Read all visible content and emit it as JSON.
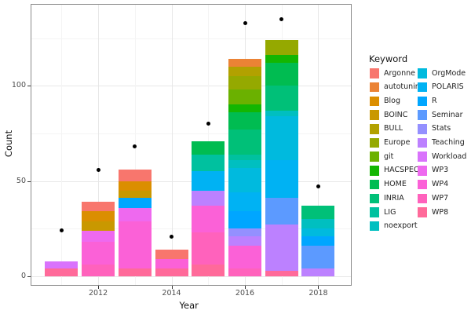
{
  "colors": {
    "background": "#ffffff",
    "panel_border": "#8a8a8a",
    "grid_major": "#e7e7e7",
    "grid_minor": "#f4f4f4",
    "tick_label": "#4d4d4d",
    "point": "#000000"
  },
  "chart_data": {
    "type": "bar",
    "stacked": true,
    "orientation": "vertical",
    "title": "",
    "xlabel": "Year",
    "ylabel": "Count",
    "legend_title": "Keyword",
    "legend_position": "right",
    "grid": true,
    "x_ticks": [
      2012,
      2014,
      2016,
      2018
    ],
    "x_minor": [
      2011,
      2013,
      2015,
      2017
    ],
    "y_ticks": [
      0,
      50,
      100
    ],
    "y_minor": [
      25,
      75,
      125
    ],
    "ylim": [
      0,
      142
    ],
    "years": [
      2011,
      2012,
      2013,
      2014,
      2015,
      2016,
      2017,
      2018
    ],
    "keywords": [
      {
        "name": "Argonne",
        "color": "#F8766D"
      },
      {
        "name": "autotuning",
        "color": "#EB8335"
      },
      {
        "name": "Blog",
        "color": "#DB8E00"
      },
      {
        "name": "BOINC",
        "color": "#C99800"
      },
      {
        "name": "BULL",
        "color": "#B2A100"
      },
      {
        "name": "Europe",
        "color": "#95A900"
      },
      {
        "name": "git",
        "color": "#6BB100"
      },
      {
        "name": "HACSPECIS",
        "color": "#13B602"
      },
      {
        "name": "HOME",
        "color": "#00BC51"
      },
      {
        "name": "INRIA",
        "color": "#00C078"
      },
      {
        "name": "LIG",
        "color": "#00C19F"
      },
      {
        "name": "noexport",
        "color": "#00BFC0"
      },
      {
        "name": "OrgMode",
        "color": "#00BADE"
      },
      {
        "name": "POLARIS",
        "color": "#00B2F3"
      },
      {
        "name": "R",
        "color": "#00A6FF"
      },
      {
        "name": "Seminar",
        "color": "#5C9AFF"
      },
      {
        "name": "Stats",
        "color": "#9490FF"
      },
      {
        "name": "Teaching",
        "color": "#BC81FF"
      },
      {
        "name": "Workload",
        "color": "#D973FC"
      },
      {
        "name": "WP3",
        "color": "#EE69EF"
      },
      {
        "name": "WP4",
        "color": "#FB61D7"
      },
      {
        "name": "WP7",
        "color": "#FF62BC"
      },
      {
        "name": "WP8",
        "color": "#FF6A9A"
      }
    ],
    "segment_order": "top_to_bottom",
    "bars": [
      {
        "year": 2011,
        "total": 8,
        "segments": [
          {
            "keyword": "Workload",
            "value": 4
          },
          {
            "keyword": "WP8",
            "value": 4
          }
        ]
      },
      {
        "year": 2012,
        "total": 39,
        "segments": [
          {
            "keyword": "Argonne",
            "value": 5
          },
          {
            "keyword": "Blog",
            "value": 5
          },
          {
            "keyword": "BOINC",
            "value": 5
          },
          {
            "keyword": "WP3",
            "value": 6
          },
          {
            "keyword": "WP4",
            "value": 12
          },
          {
            "keyword": "WP7",
            "value": 6
          }
        ]
      },
      {
        "year": 2013,
        "total": 56,
        "segments": [
          {
            "keyword": "Argonne",
            "value": 6
          },
          {
            "keyword": "Blog",
            "value": 5
          },
          {
            "keyword": "BOINC",
            "value": 4
          },
          {
            "keyword": "R",
            "value": 5
          },
          {
            "keyword": "WP3",
            "value": 7
          },
          {
            "keyword": "WP4",
            "value": 25
          },
          {
            "keyword": "WP8",
            "value": 4
          }
        ]
      },
      {
        "year": 2014,
        "total": 14,
        "segments": [
          {
            "keyword": "Argonne",
            "value": 5
          },
          {
            "keyword": "WP4",
            "value": 5
          },
          {
            "keyword": "WP8",
            "value": 4
          }
        ]
      },
      {
        "year": 2015,
        "total": 71,
        "segments": [
          {
            "keyword": "HOME",
            "value": 7
          },
          {
            "keyword": "LIG",
            "value": 9
          },
          {
            "keyword": "POLARIS",
            "value": 10
          },
          {
            "keyword": "Teaching",
            "value": 8
          },
          {
            "keyword": "WP4",
            "value": 14
          },
          {
            "keyword": "WP7",
            "value": 17
          },
          {
            "keyword": "WP8",
            "value": 6
          }
        ]
      },
      {
        "year": 2016,
        "total": 114,
        "segments": [
          {
            "keyword": "autotuning",
            "value": 4
          },
          {
            "keyword": "BULL",
            "value": 5
          },
          {
            "keyword": "Europe",
            "value": 7
          },
          {
            "keyword": "git",
            "value": 8
          },
          {
            "keyword": "HACSPECIS",
            "value": 4
          },
          {
            "keyword": "HOME",
            "value": 9
          },
          {
            "keyword": "INRIA",
            "value": 13
          },
          {
            "keyword": "LIG",
            "value": 3
          },
          {
            "keyword": "noexport",
            "value": 4
          },
          {
            "keyword": "OrgMode",
            "value": 13
          },
          {
            "keyword": "POLARIS",
            "value": 10
          },
          {
            "keyword": "R",
            "value": 9
          },
          {
            "keyword": "Stats",
            "value": 4
          },
          {
            "keyword": "Teaching",
            "value": 5
          },
          {
            "keyword": "WP4",
            "value": 12
          },
          {
            "keyword": "WP7",
            "value": 4
          }
        ]
      },
      {
        "year": 2017,
        "total": 124,
        "segments": [
          {
            "keyword": "Europe",
            "value": 8
          },
          {
            "keyword": "HACSPECIS",
            "value": 4
          },
          {
            "keyword": "HOME",
            "value": 12
          },
          {
            "keyword": "INRIA",
            "value": 13
          },
          {
            "keyword": "noexport",
            "value": 3
          },
          {
            "keyword": "OrgMode",
            "value": 23
          },
          {
            "keyword": "POLARIS",
            "value": 20
          },
          {
            "keyword": "Seminar",
            "value": 14
          },
          {
            "keyword": "Teaching",
            "value": 24
          },
          {
            "keyword": "WP8",
            "value": 3
          }
        ]
      },
      {
        "year": 2018,
        "total": 37,
        "segments": [
          {
            "keyword": "INRIA",
            "value": 7
          },
          {
            "keyword": "noexport",
            "value": 5
          },
          {
            "keyword": "OrgMode",
            "value": 4
          },
          {
            "keyword": "R",
            "value": 5
          },
          {
            "keyword": "Seminar",
            "value": 12
          },
          {
            "keyword": "Teaching",
            "value": 4
          }
        ]
      }
    ],
    "points": [
      {
        "year": 2011,
        "value": 24
      },
      {
        "year": 2012,
        "value": 56
      },
      {
        "year": 2013,
        "value": 68
      },
      {
        "year": 2014,
        "value": 21
      },
      {
        "year": 2015,
        "value": 80
      },
      {
        "year": 2016,
        "value": 133
      },
      {
        "year": 2017,
        "value": 135
      },
      {
        "year": 2018,
        "value": 47
      }
    ]
  }
}
